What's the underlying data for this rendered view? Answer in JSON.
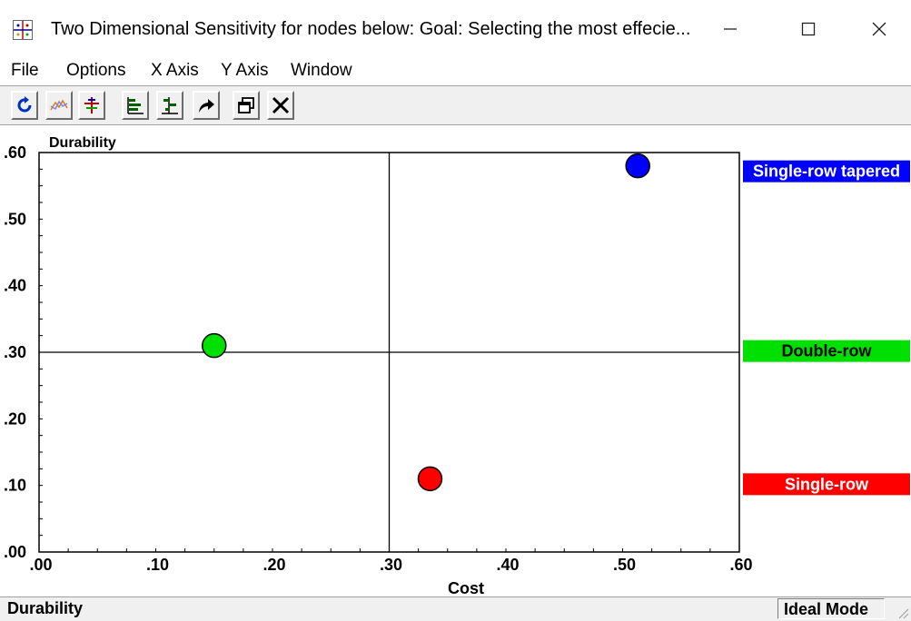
{
  "window": {
    "title": "Two Dimensional Sensitivity for nodes below: Goal: Selecting the most effecie...",
    "controls": {
      "minimize": "—",
      "maximize": "☐",
      "close": "✕"
    }
  },
  "menu": [
    "File",
    "Options",
    "X Axis",
    "Y Axis",
    "Window"
  ],
  "toolbar": {
    "buttons": [
      "refresh-icon",
      "line-graph-icon",
      "crosshair-icon",
      "bars-icon",
      "bars-alt-icon",
      "redo-arrow-icon",
      "copy-window-icon",
      "close-x-icon"
    ]
  },
  "chart_data": {
    "type": "scatter",
    "xlabel": "Cost",
    "ylabel": "Durability",
    "xlim": [
      0,
      0.6
    ],
    "ylim": [
      0,
      0.6
    ],
    "x_ticks": [
      ".00",
      ".10",
      ".20",
      ".30",
      ".40",
      ".50",
      ".60"
    ],
    "y_ticks": [
      ".00",
      ".10",
      ".20",
      ".30",
      ".40",
      ".50",
      ".60"
    ],
    "divider": {
      "x": 0.3,
      "y": 0.3
    },
    "grid": false,
    "points": [
      {
        "label": "Single-row tapered",
        "x": 0.513,
        "y": 0.58,
        "color": "#0000ff"
      },
      {
        "label": "Double-row",
        "x": 0.15,
        "y": 0.31,
        "color": "#00e000"
      },
      {
        "label": "Single-row",
        "x": 0.335,
        "y": 0.11,
        "color": "#ff0000"
      }
    ]
  },
  "status": {
    "left": "Durability",
    "right": "Ideal Mode"
  }
}
